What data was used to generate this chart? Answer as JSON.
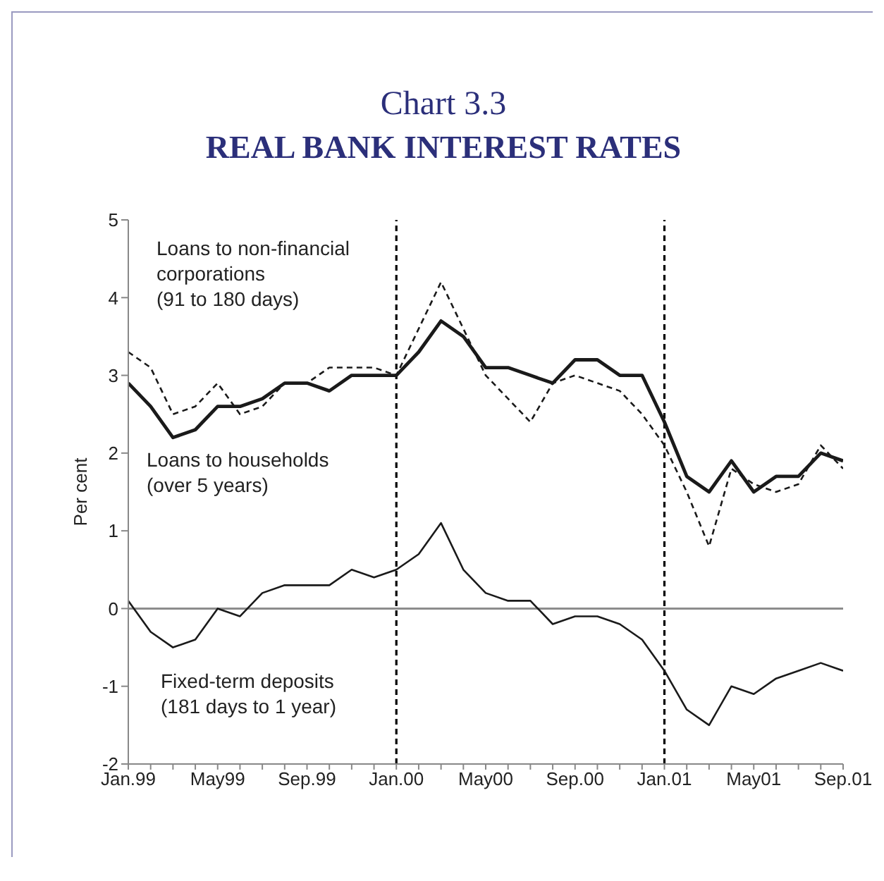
{
  "chart_data": {
    "type": "line",
    "title": "Chart 3.3",
    "subtitle": "REAL BANK INTEREST RATES",
    "ylabel": "Per cent",
    "categories": [
      "Jan.99",
      null,
      null,
      null,
      "May99",
      null,
      null,
      null,
      "Sep.99",
      null,
      null,
      null,
      "Jan.00",
      null,
      null,
      null,
      "May00",
      null,
      null,
      null,
      "Sep.00",
      null,
      null,
      null,
      "Jan.01",
      null,
      null,
      null,
      "May01",
      null,
      null,
      null,
      "Sep.01"
    ],
    "series": [
      {
        "color": "#1a1a1a",
        "line_style": "solid",
        "values": [
          2.9,
          2.6,
          2.2,
          2.3,
          2.6,
          2.6,
          2.7,
          2.9,
          2.9,
          2.8,
          3.0,
          3.0,
          3.0,
          3.3,
          3.7,
          3.5,
          3.1,
          3.1,
          3.0,
          2.9,
          3.2,
          3.2,
          3.0,
          3.0,
          2.4,
          1.7,
          1.5,
          1.9,
          1.5,
          1.7,
          1.7,
          2.0,
          1.9
        ]
      },
      {
        "color": "#1a1a1a",
        "line_style": "dashed",
        "values": [
          3.3,
          3.1,
          2.5,
          2.6,
          2.9,
          2.5,
          2.6,
          2.9,
          2.9,
          3.1,
          3.1,
          3.1,
          3.0,
          3.6,
          4.2,
          3.6,
          3.0,
          2.7,
          2.4,
          2.9,
          3.0,
          2.9,
          2.8,
          2.5,
          2.1,
          1.5,
          0.8,
          1.8,
          1.6,
          1.5,
          1.6,
          2.1,
          1.8
        ]
      },
      {
        "color": "#1a1a1a",
        "line_style": "solid",
        "values": [
          0.1,
          -0.3,
          -0.5,
          -0.4,
          0.0,
          -0.1,
          0.2,
          0.3,
          0.3,
          0.3,
          0.5,
          0.4,
          0.5,
          0.7,
          1.1,
          0.5,
          0.2,
          0.1,
          0.1,
          -0.2,
          -0.1,
          -0.1,
          -0.2,
          -0.4,
          -0.8,
          -1.3,
          -1.5,
          -1.0,
          -1.1,
          -0.9,
          -0.8,
          -0.7,
          -0.8
        ]
      }
    ],
    "ylim": [
      -2,
      5
    ],
    "yticks": [
      -2,
      -1,
      0,
      1,
      2,
      3,
      4,
      5
    ],
    "grid": false,
    "legend": false,
    "marker": "none",
    "ref_lines": [
      {
        "axis": "x",
        "value": "Jan.00",
        "line_style": "dashed",
        "color": "#000000"
      },
      {
        "axis": "x",
        "value": "Jan.01",
        "line_style": "dashed",
        "color": "#000000"
      },
      {
        "axis": "y",
        "value": 0,
        "line_style": "solid",
        "color": "#8c8c8c"
      }
    ],
    "annotations": [
      "Loans to non-financial corporations (91 to 180 days)",
      "Loans to households (over 5 years)",
      "Fixed-term deposits (181 days to 1 year)"
    ]
  }
}
